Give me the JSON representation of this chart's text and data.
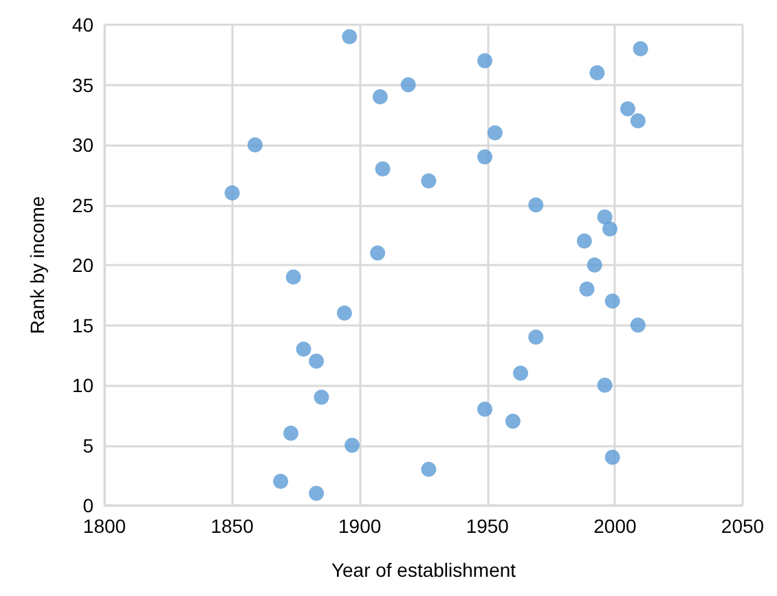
{
  "chart_data": {
    "type": "scatter",
    "xlabel": "Year of establishment",
    "ylabel": "Rank by income",
    "x": [
      1883,
      1869,
      1927,
      1999,
      1897,
      1873,
      1960,
      1949,
      1885,
      1996,
      1963,
      1883,
      1878,
      1969,
      2009,
      1894,
      1999,
      1989,
      1874,
      1992,
      1907,
      1988,
      1998,
      1996,
      1969,
      1850,
      1927,
      1909,
      1949,
      1859,
      1953,
      2009,
      2005,
      1908,
      1919,
      1993,
      1949,
      2010,
      1896
    ],
    "values": [
      1,
      2,
      3,
      4,
      5,
      6,
      7,
      8,
      9,
      10,
      11,
      12,
      13,
      14,
      15,
      16,
      17,
      18,
      19,
      20,
      21,
      22,
      23,
      24,
      25,
      26,
      27,
      28,
      29,
      30,
      31,
      32,
      33,
      34,
      35,
      36,
      37,
      38,
      39
    ],
    "color": "#5b9bd5",
    "marker": "circle",
    "xlim": [
      1800,
      2050
    ],
    "xticks": [
      1800,
      1850,
      1900,
      1950,
      2000,
      2050
    ],
    "ylim": [
      0,
      40
    ],
    "yticks": [
      0,
      5,
      10,
      15,
      20,
      25,
      30,
      35,
      40
    ],
    "grid": true
  }
}
